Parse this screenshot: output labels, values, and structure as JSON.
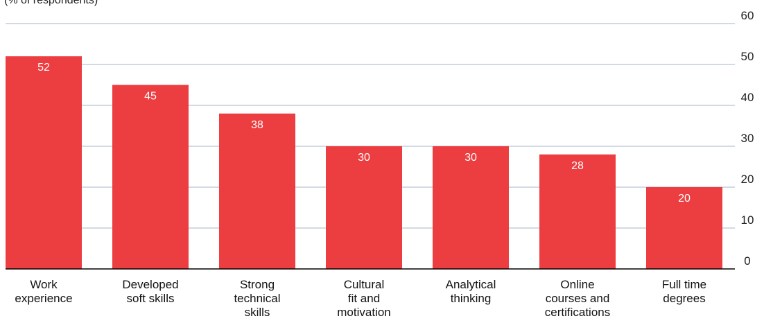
{
  "unit_label": "(% of respondents)",
  "chart_data": {
    "type": "bar",
    "categories": [
      "Work experience",
      "Developed soft skills",
      "Strong technical skills",
      "Cultural fit and motivation",
      "Analytical thinking",
      "Online courses and certifications",
      "Full time degrees"
    ],
    "category_lines": [
      [
        "Work",
        "experience"
      ],
      [
        "Developed",
        "soft skills"
      ],
      [
        "Strong",
        "technical",
        "skills"
      ],
      [
        "Cultural",
        "fit and",
        "motivation"
      ],
      [
        "Analytical",
        "thinking"
      ],
      [
        "Online",
        "courses and",
        "certifications"
      ],
      [
        "Full time",
        "degrees"
      ]
    ],
    "values": [
      52,
      45,
      38,
      30,
      30,
      28,
      20
    ],
    "ylim": [
      0,
      60
    ],
    "yticks": [
      0,
      10,
      20,
      30,
      40,
      50,
      60
    ],
    "y_axis_position": "right",
    "grid": true,
    "colors": {
      "bar": "#ec3d40",
      "grid": "#a8b4c8",
      "axis": "#000000"
    }
  }
}
